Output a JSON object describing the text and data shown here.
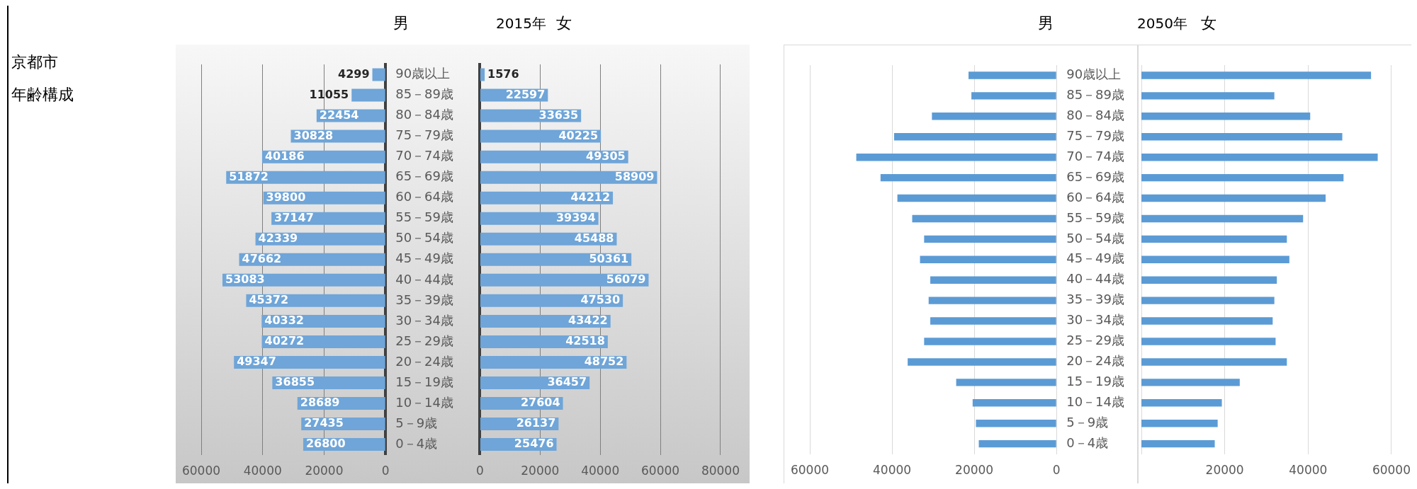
{
  "chart_data": [
    {
      "type": "bar",
      "orientation": "horizontal",
      "title": "男",
      "annotations": [
        "京都市",
        "年齢構成"
      ],
      "categories": [
        "90歳以上",
        "85－89歳",
        "80－84歳",
        "75－79歳",
        "70－74歳",
        "65－69歳",
        "60－64歳",
        "55－59歳",
        "50－54歳",
        "45－49歳",
        "40－44歳",
        "35－39歳",
        "30－34歳",
        "25－29歳",
        "20－24歳",
        "15－19歳",
        "10－14歳",
        "5－9歳",
        "0－4歳"
      ],
      "values": [
        4299,
        11055,
        22454,
        30828,
        40186,
        51872,
        39800,
        37147,
        42339,
        47662,
        53083,
        45372,
        40332,
        40272,
        49347,
        36855,
        28689,
        27435,
        26800
      ],
      "color": "#6fa5d8",
      "xlim": [
        60000,
        0
      ],
      "xticks": [
        0,
        20000,
        40000,
        60000
      ],
      "grid": "x",
      "data_labels": true
    },
    {
      "type": "bar",
      "orientation": "horizontal",
      "title": "女",
      "subtitle": "2015年",
      "values": [
        1576,
        22597,
        33635,
        40225,
        49305,
        58909,
        44212,
        39394,
        45488,
        50361,
        56079,
        47530,
        43422,
        42518,
        48752,
        36457,
        27604,
        26137,
        25476
      ],
      "color": "#6fa5d8",
      "xlim": [
        0,
        80000
      ],
      "xticks": [
        0,
        20000,
        40000,
        60000,
        80000
      ],
      "grid": "x",
      "data_labels": true,
      "tick_labels": "x"
    },
    {
      "type": "bar",
      "orientation": "horizontal",
      "title": "男",
      "categories": [
        "90歳以上",
        "85－89歳",
        "80－84歳",
        "75－79歳",
        "70－74歳",
        "65－69歳",
        "60－64歳",
        "55－59歳",
        "50－54歳",
        "45－49歳",
        "40－44歳",
        "35－39歳",
        "30－34歳",
        "25－29歳",
        "20－24歳",
        "15－19歳",
        "10－14歳",
        "5－9歳",
        "0－4歳"
      ],
      "values": [
        21400,
        20700,
        30300,
        39500,
        48700,
        42800,
        38700,
        35100,
        32200,
        33200,
        30700,
        31100,
        30700,
        32200,
        36200,
        24400,
        20400,
        19600,
        18900
      ],
      "color": "#5b9bd5",
      "xlim": [
        60000,
        0
      ],
      "xticks": [
        0,
        20000,
        40000,
        60000
      ],
      "grid": "x"
    },
    {
      "type": "bar",
      "orientation": "horizontal",
      "title": "女",
      "subtitle": "2050年",
      "values": [
        55100,
        31900,
        40500,
        48200,
        56700,
        48500,
        44200,
        38800,
        34900,
        35500,
        32500,
        31900,
        31500,
        32200,
        34900,
        23600,
        19300,
        18300,
        17600
      ],
      "color": "#5b9bd5",
      "xlim": [
        0,
        60000
      ],
      "xticks": [
        20000,
        40000,
        60000
      ],
      "grid": "x",
      "tick_labels": "x"
    }
  ]
}
